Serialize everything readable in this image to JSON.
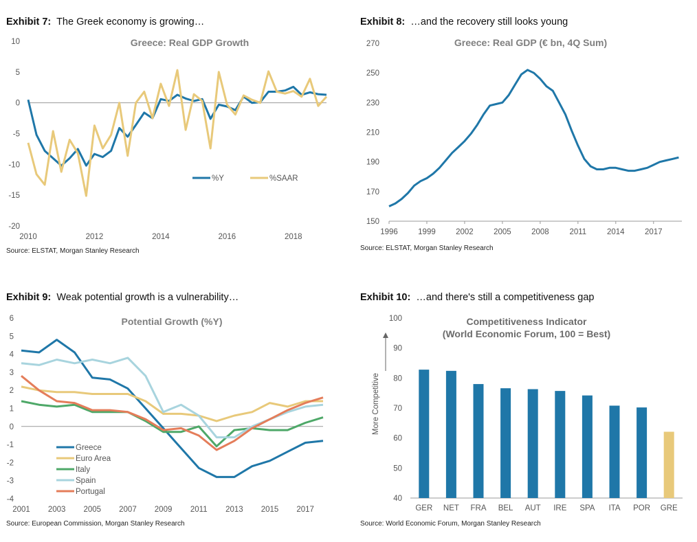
{
  "exhibits": [
    {
      "label": "Exhibit 7:",
      "text": "The Greek economy is growing…",
      "source": "Source: ELSTAT, Morgan Stanley Research"
    },
    {
      "label": "Exhibit 8:",
      "text": "…and the recovery still looks young",
      "source": "Source: ELSTAT, Morgan Stanley Research"
    },
    {
      "label": "Exhibit 9:",
      "text": "Weak potential growth is a vulnerability…",
      "source": "Source: European Commission, Morgan Stanley Research"
    },
    {
      "label": "Exhibit 10:",
      "text": "…and there's still a competitiveness gap",
      "source": "Source: World Economic Forum, Morgan Stanley Research"
    }
  ],
  "colors": {
    "blue": "#1f77a8",
    "gold": "#e8c97a",
    "green": "#4ea868",
    "lightblue": "#a8d4de",
    "orange": "#e47d5a",
    "axis": "#999999"
  },
  "chart_data": [
    {
      "type": "line",
      "title": "Greece: Real GDP Growth",
      "xlim": [
        2010,
        2019
      ],
      "ylim": [
        -20,
        10
      ],
      "xticks": [
        2010,
        2012,
        2014,
        2016,
        2018
      ],
      "yticks": [
        10,
        5,
        0,
        -5,
        -10,
        -15,
        -20
      ],
      "series": [
        {
          "name": "%Y",
          "color": "#1f77a8",
          "x": [
            2010.0,
            2010.25,
            2010.5,
            2010.75,
            2011.0,
            2011.25,
            2011.5,
            2011.75,
            2012.0,
            2012.25,
            2012.5,
            2012.75,
            2013.0,
            2013.25,
            2013.5,
            2013.75,
            2014.0,
            2014.25,
            2014.5,
            2014.75,
            2015.0,
            2015.25,
            2015.5,
            2015.75,
            2016.0,
            2016.25,
            2016.5,
            2016.75,
            2017.0,
            2017.25,
            2017.5,
            2017.75,
            2018.0,
            2018.25,
            2018.5,
            2018.75,
            2019.0
          ],
          "y": [
            0.5,
            -5.2,
            -7.8,
            -9.0,
            -10.2,
            -9.0,
            -7.5,
            -10.2,
            -8.3,
            -8.8,
            -7.8,
            -4.1,
            -5.5,
            -3.6,
            -1.6,
            -2.5,
            0.6,
            0.3,
            1.3,
            0.7,
            0.3,
            0.6,
            -2.6,
            -0.3,
            -0.6,
            -1.2,
            1.0,
            0.0,
            0.1,
            1.8,
            1.8,
            2.0,
            2.6,
            1.3,
            1.7,
            1.4,
            1.3
          ]
        },
        {
          "name": "%SAAR",
          "color": "#e8c97a",
          "x": [
            2010.0,
            2010.25,
            2010.5,
            2010.75,
            2011.0,
            2011.25,
            2011.5,
            2011.75,
            2012.0,
            2012.25,
            2012.5,
            2012.75,
            2013.0,
            2013.25,
            2013.5,
            2013.75,
            2014.0,
            2014.25,
            2014.5,
            2014.75,
            2015.0,
            2015.25,
            2015.5,
            2015.75,
            2016.0,
            2016.25,
            2016.5,
            2016.75,
            2017.0,
            2017.25,
            2017.5,
            2017.75,
            2018.0,
            2018.25,
            2018.5,
            2018.75,
            2019.0
          ],
          "y": [
            -6.5,
            -11.6,
            -13.3,
            -4.6,
            -11.2,
            -6.0,
            -8.2,
            -15.1,
            -3.7,
            -7.4,
            -5.2,
            0.0,
            -8.6,
            0.0,
            1.8,
            -2.5,
            3.1,
            -0.5,
            5.3,
            -4.4,
            1.4,
            0.3,
            -7.4,
            5.0,
            -0.3,
            -1.9,
            1.2,
            0.5,
            0.0,
            5.1,
            1.8,
            1.5,
            1.9,
            1.0,
            3.9,
            -0.5,
            1.0
          ]
        }
      ]
    },
    {
      "type": "line",
      "title": "Greece: Real GDP (€ bn, 4Q Sum)",
      "xlim": [
        1996,
        2019.25
      ],
      "ylim": [
        150,
        270
      ],
      "xticks": [
        1996,
        1999,
        2002,
        2005,
        2008,
        2011,
        2014,
        2017
      ],
      "yticks": [
        270,
        250,
        230,
        210,
        190,
        170,
        150
      ],
      "series": [
        {
          "name": "Real GDP",
          "color": "#1f77a8",
          "x": [
            1996,
            1996.5,
            1997,
            1997.5,
            1998,
            1998.5,
            1999,
            1999.5,
            2000,
            2000.5,
            2001,
            2001.5,
            2002,
            2002.5,
            2003,
            2003.5,
            2004,
            2004.5,
            2005,
            2005.5,
            2006,
            2006.5,
            2007,
            2007.5,
            2008,
            2008.5,
            2009,
            2009.5,
            2010,
            2010.5,
            2011,
            2011.5,
            2012,
            2012.5,
            2013,
            2013.5,
            2014,
            2014.5,
            2015,
            2015.5,
            2016,
            2016.5,
            2017,
            2017.5,
            2018,
            2018.5,
            2019
          ],
          "y": [
            160,
            162,
            165,
            169,
            174,
            177,
            179,
            182,
            186,
            191,
            196,
            200,
            204,
            209,
            215,
            222,
            228,
            229,
            230,
            235,
            242,
            249,
            252,
            250,
            246,
            241,
            238,
            230,
            222,
            211,
            201,
            192,
            187,
            185,
            185,
            186,
            186,
            185,
            184,
            184,
            185,
            186,
            188,
            190,
            191,
            192,
            193
          ]
        }
      ]
    },
    {
      "type": "line",
      "title": "Potential Growth (%Y)",
      "xlim": [
        2001,
        2018
      ],
      "ylim": [
        -4,
        6
      ],
      "xticks": [
        2001,
        2003,
        2005,
        2007,
        2009,
        2011,
        2013,
        2015,
        2017
      ],
      "yticks": [
        6,
        5,
        4,
        3,
        2,
        1,
        0,
        -1,
        -2,
        -3,
        -4
      ],
      "series": [
        {
          "name": "Greece",
          "color": "#1f77a8",
          "x": [
            2001,
            2002,
            2003,
            2004,
            2005,
            2006,
            2007,
            2008,
            2009,
            2010,
            2011,
            2012,
            2013,
            2014,
            2015,
            2016,
            2017,
            2018
          ],
          "y": [
            4.2,
            4.1,
            4.8,
            4.1,
            2.7,
            2.6,
            2.1,
            1.0,
            -0.1,
            -1.2,
            -2.3,
            -2.8,
            -2.8,
            -2.2,
            -1.9,
            -1.4,
            -0.9,
            -0.8
          ]
        },
        {
          "name": "Euro Area",
          "color": "#e8c97a",
          "x": [
            2001,
            2002,
            2003,
            2004,
            2005,
            2006,
            2007,
            2008,
            2009,
            2010,
            2011,
            2012,
            2013,
            2014,
            2015,
            2016,
            2017,
            2018
          ],
          "y": [
            2.2,
            2.0,
            1.9,
            1.9,
            1.8,
            1.8,
            1.8,
            1.4,
            0.7,
            0.7,
            0.6,
            0.3,
            0.6,
            0.8,
            1.3,
            1.1,
            1.4,
            1.4
          ]
        },
        {
          "name": "Italy",
          "color": "#4ea868",
          "x": [
            2001,
            2002,
            2003,
            2004,
            2005,
            2006,
            2007,
            2008,
            2009,
            2010,
            2011,
            2012,
            2013,
            2014,
            2015,
            2016,
            2017,
            2018
          ],
          "y": [
            1.4,
            1.2,
            1.1,
            1.2,
            0.8,
            0.8,
            0.8,
            0.3,
            -0.3,
            -0.3,
            0.0,
            -1.1,
            -0.2,
            -0.1,
            -0.2,
            -0.2,
            0.2,
            0.5
          ]
        },
        {
          "name": "Spain",
          "color": "#a8d4de",
          "x": [
            2001,
            2002,
            2003,
            2004,
            2005,
            2006,
            2007,
            2008,
            2009,
            2010,
            2011,
            2012,
            2013,
            2014,
            2015,
            2016,
            2017,
            2018
          ],
          "y": [
            3.5,
            3.4,
            3.7,
            3.5,
            3.7,
            3.5,
            3.8,
            2.8,
            0.8,
            1.2,
            0.6,
            -0.6,
            -0.6,
            0.0,
            0.4,
            0.8,
            1.1,
            1.2
          ]
        },
        {
          "name": "Portugal",
          "color": "#e47d5a",
          "x": [
            2001,
            2002,
            2003,
            2004,
            2005,
            2006,
            2007,
            2008,
            2009,
            2010,
            2011,
            2012,
            2013,
            2014,
            2015,
            2016,
            2017,
            2018
          ],
          "y": [
            2.8,
            2.0,
            1.4,
            1.3,
            0.9,
            0.9,
            0.8,
            0.4,
            -0.2,
            -0.1,
            -0.5,
            -1.3,
            -0.8,
            -0.1,
            0.4,
            0.9,
            1.3,
            1.6
          ]
        }
      ]
    },
    {
      "type": "bar",
      "title": "Competitiveness Indicator",
      "subtitle": "(World Economic Forum, 100 = Best)",
      "ylabel": "More Competitive",
      "ylim": [
        40,
        100
      ],
      "yticks": [
        100,
        90,
        80,
        70,
        60,
        50,
        40
      ],
      "categories": [
        "GER",
        "NET",
        "FRA",
        "BEL",
        "AUT",
        "IRE",
        "SPA",
        "ITA",
        "POR",
        "GRE"
      ],
      "values": [
        82.8,
        82.4,
        78.0,
        76.6,
        76.3,
        75.7,
        74.2,
        70.8,
        70.2,
        62.1
      ],
      "bar_colors": [
        "#1f77a8",
        "#1f77a8",
        "#1f77a8",
        "#1f77a8",
        "#1f77a8",
        "#1f77a8",
        "#1f77a8",
        "#1f77a8",
        "#1f77a8",
        "#e8c97a"
      ]
    }
  ]
}
